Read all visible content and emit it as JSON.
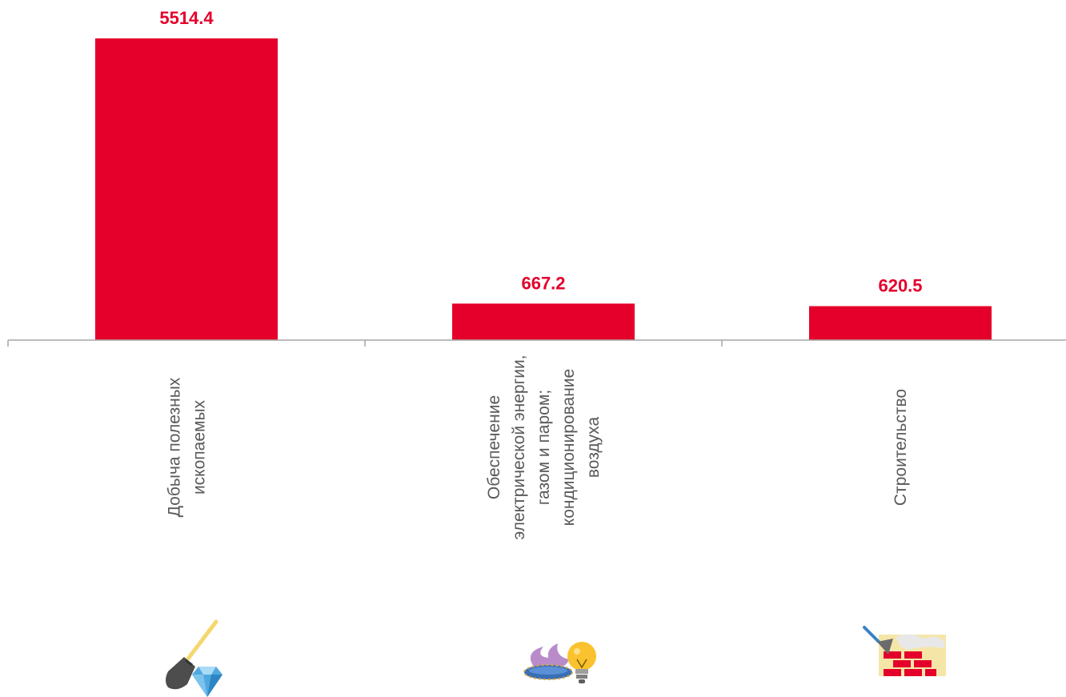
{
  "chart_data": {
    "type": "bar",
    "categories": [
      "Добыча полезных ископаемых",
      "Обеспечение электрической энергии, газом и паром; кондиционирование воздуха",
      "Строительство"
    ],
    "category_lines": [
      [
        "Добыча полезных",
        "ископаемых"
      ],
      [
        "Обеспечение",
        "электрической энергии,",
        "газом и паром;",
        "кондиционирование",
        "воздуха"
      ],
      [
        "Строительство"
      ]
    ],
    "values": [
      5514.4,
      667.2,
      620.5
    ],
    "value_labels": [
      "5514.4",
      "667.2",
      "620.5"
    ],
    "ylim": [
      0,
      5514.4
    ],
    "grid": false,
    "legend": "none",
    "colors": {
      "bar": "#E4002B",
      "value_label": "#E4002B",
      "axis": "#A6A6A6",
      "category_label": "#595959"
    },
    "icons": [
      "shovel-diamond-icon",
      "gas-flame-bulb-icon",
      "trowel-brick-wall-icon"
    ]
  }
}
